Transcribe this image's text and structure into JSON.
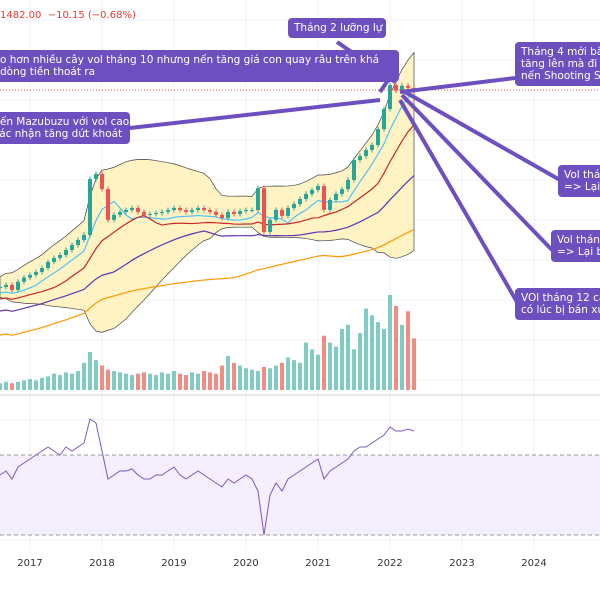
{
  "header": {
    "price": "1482.00",
    "change": "−10.15 (−0.68%)"
  },
  "annotations": [
    {
      "lines": [
        "Tháng 2 lưỡng lự"
      ]
    },
    {
      "lines": [
        "o hơn nhiều cây vol tháng 10 nhưng nến tăng giá con quay râu trên khá",
        "dòng tiền thoát ra"
      ]
    },
    {
      "lines": [
        "Nến Mazubuzu với vol cao",
        "Xác nhận tăng dứt khoát"
      ]
    },
    {
      "lines": [
        "Tháng 4 mới bắt",
        "tăng lên mà đi n",
        "nến Shooting St"
      ]
    },
    {
      "lines": [
        "Vol thán",
        "=> Lại"
      ]
    },
    {
      "lines": [
        "Vol tháng",
        "=> Lại b"
      ]
    },
    {
      "lines": [
        "VOl tháng 12 ca",
        "có lúc bị bán xu"
      ]
    }
  ],
  "colors": {
    "up": "#26a69a",
    "down": "#ef5350",
    "band": "#fff3c4",
    "annotation": "#6e4fc0",
    "rsi": "#7e57c2"
  },
  "chart_data": {
    "type": "candlestick",
    "x_labels": [
      "2017",
      "2018",
      "2019",
      "2020",
      "2021",
      "2022",
      "2023",
      "2024"
    ],
    "start": "2016-10",
    "closes": [
      540,
      550,
      526,
      565,
      585,
      598,
      612,
      631,
      660,
      679,
      693,
      717,
      741,
      765,
      789,
      1056,
      1080,
      1008,
      861,
      885,
      899,
      908,
      918,
      899,
      885,
      889,
      894,
      899,
      908,
      918,
      908,
      899,
      908,
      918,
      908,
      899,
      885,
      870,
      899,
      889,
      903,
      908,
      908,
      1013,
      803,
      861,
      909,
      880,
      918,
      937,
      961,
      985,
      1004,
      1023,
      909,
      956,
      985,
      1008,
      1052,
      1147,
      1166,
      1195,
      1219,
      1295,
      1391,
      1505,
      1479,
      1502,
      1492,
      1482
    ],
    "volumes": [
      5,
      6,
      5,
      6,
      7,
      8,
      7,
      9,
      10,
      12,
      11,
      13,
      12,
      14,
      20,
      28,
      22,
      18,
      15,
      14,
      13,
      12,
      11,
      12,
      13,
      12,
      11,
      13,
      12,
      14,
      12,
      11,
      13,
      12,
      14,
      13,
      12,
      18,
      25,
      20,
      18,
      16,
      15,
      14,
      17,
      16,
      18,
      20,
      24,
      22,
      20,
      35,
      30,
      26,
      40,
      35,
      32,
      45,
      48,
      30,
      42,
      60,
      55,
      50,
      45,
      70,
      62,
      48,
      58,
      38
    ],
    "rsi": [
      60,
      62,
      58,
      64,
      66,
      68,
      70,
      72,
      74,
      72,
      70,
      74,
      72,
      74,
      76,
      88,
      86,
      72,
      58,
      60,
      62,
      62,
      63,
      60,
      58,
      58,
      60,
      60,
      62,
      64,
      60,
      58,
      60,
      62,
      60,
      58,
      56,
      54,
      58,
      56,
      58,
      60,
      58,
      52,
      30,
      50,
      56,
      52,
      58,
      60,
      62,
      64,
      66,
      68,
      58,
      62,
      64,
      66,
      68,
      72,
      74,
      74,
      76,
      78,
      80,
      84,
      82,
      82,
      83,
      82
    ],
    "rsi_levels": [
      70,
      30
    ]
  }
}
